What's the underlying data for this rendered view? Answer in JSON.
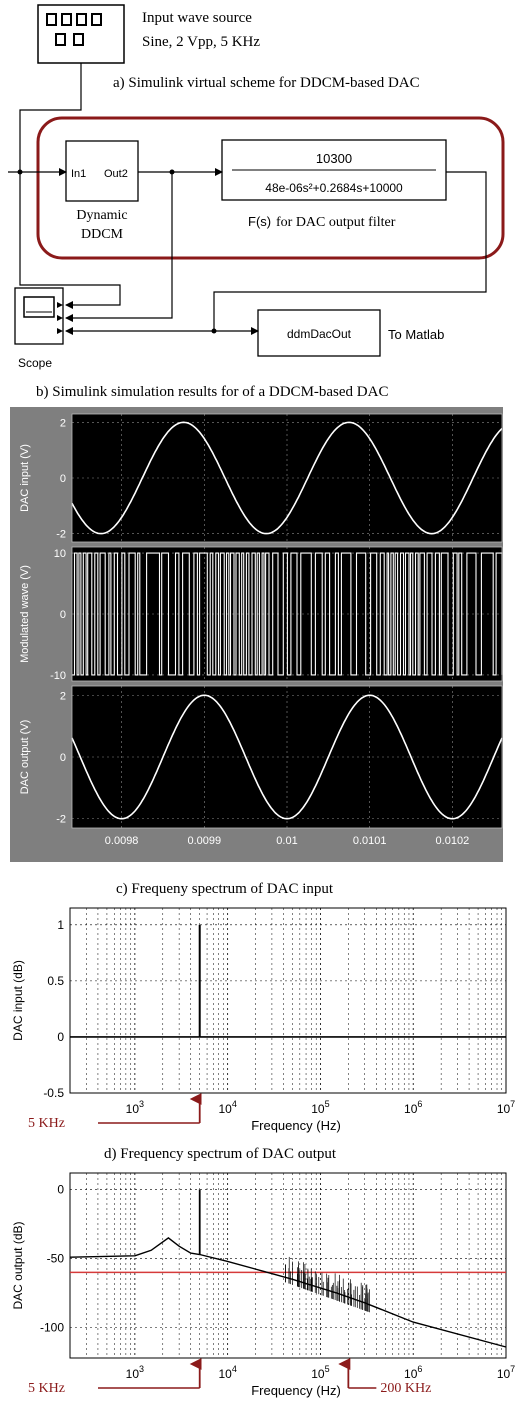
{
  "captions": {
    "a": "a)  Simulink virtual scheme for DDCM-based DAC",
    "b": "b)  Simulink simulation results for of  a  DDCM-based DAC",
    "c": "c)   Frequeny  spectrum of DAC input",
    "d": "d)  Frequency spectrum of DAC output"
  },
  "scheme": {
    "source_title": "Input wave source",
    "source_params": "Sine, 2 Vpp, 5 KHz",
    "ddcm_in": "In1",
    "ddcm_out": "Out2",
    "ddcm_label_1": "Dynamic",
    "ddcm_label_2": "DDCM",
    "tf_numerator": "10300",
    "tf_denominator": "48e-06s²+0.2684s+10000",
    "tf_fs": "F(s)",
    "tf_caption": "for DAC output filter",
    "scope_label": "Scope",
    "workspace_var": "ddmDacOut",
    "workspace_caption": "To Matlab"
  },
  "chart_data": [
    {
      "type": "line",
      "title": "",
      "ylabel": "DAC input (V)",
      "xlim": [
        0.00974,
        0.01026
      ],
      "ylim": [
        -2.3,
        2.3
      ],
      "yticks": [
        "2",
        "0",
        "-2"
      ],
      "yticks_values": [
        2,
        0,
        -2
      ],
      "signal": {
        "kind": "sine",
        "amplitude": 2,
        "frequency_hz": 5000,
        "phase_ref_max_at": 0.009875
      },
      "grid": true,
      "background": "#000000",
      "line_color": "#ffffff"
    },
    {
      "type": "line",
      "title": "",
      "ylabel": "Modulated wave (V)",
      "xlim": [
        0.00974,
        0.01026
      ],
      "ylim": [
        -11,
        11
      ],
      "yticks": [
        "10",
        "0",
        "-10"
      ],
      "yticks_values": [
        10,
        0,
        -10
      ],
      "signal": {
        "kind": "pulse-modulated",
        "levels": [
          10,
          -10
        ]
      },
      "grid": true,
      "background": "#000000",
      "line_color": "#ffffff"
    },
    {
      "type": "line",
      "title": "",
      "ylabel": "DAC output (V)",
      "xlabel": "",
      "xlim": [
        0.00974,
        0.01026
      ],
      "ylim": [
        -2.3,
        2.3
      ],
      "yticks": [
        "2",
        "0",
        "-2"
      ],
      "yticks_values": [
        2,
        0,
        -2
      ],
      "xticks": [
        "0.0098",
        "0.0099",
        "0.01",
        "0.0101",
        "0.0102"
      ],
      "xticks_values": [
        0.0098,
        0.0099,
        0.01,
        0.0101,
        0.0102
      ],
      "signal": {
        "kind": "sine",
        "amplitude": 2,
        "frequency_hz": 5000,
        "phase_ref_max_at": 0.0099
      },
      "grid": true,
      "background": "#000000",
      "line_color": "#ffffff"
    },
    {
      "type": "line",
      "title": "",
      "xlabel": "Frequency (Hz)",
      "ylabel": "DAC input (dB)",
      "x_scale": "log",
      "xlim": [
        200,
        10000000
      ],
      "ylim": [
        -0.5,
        1.15
      ],
      "yticks": [
        "1",
        "0.5",
        "0",
        "-0.5"
      ],
      "yticks_values": [
        1,
        0.5,
        0,
        -0.5
      ],
      "xticks_base": "10",
      "xticks_exp": [
        "3",
        "4",
        "5",
        "6",
        "7"
      ],
      "series": [
        {
          "values": [
            {
              "x": 5000,
              "y": 1
            }
          ],
          "baseline": 0
        }
      ],
      "annotations": [
        {
          "label": "5 KHz",
          "x": 5000
        }
      ],
      "grid": true
    },
    {
      "type": "line",
      "title": "",
      "xlabel": "Frequency (Hz)",
      "ylabel": "DAC output (dB)",
      "x_scale": "log",
      "xlim": [
        200,
        10000000
      ],
      "ylim": [
        -122,
        12
      ],
      "yticks": [
        "0",
        "-50",
        "-100"
      ],
      "yticks_values": [
        0,
        -50,
        -100
      ],
      "xticks_base": "10",
      "xticks_exp": [
        "3",
        "4",
        "5",
        "6",
        "7"
      ],
      "series": [
        {
          "values": [
            {
              "x": 200,
              "y": -49
            },
            {
              "x": 1000,
              "y": -48
            },
            {
              "x": 1500,
              "y": -44
            },
            {
              "x": 2300,
              "y": -35
            },
            {
              "x": 3000,
              "y": -41
            },
            {
              "x": 4000,
              "y": -46
            },
            {
              "x": 5000,
              "y": -47
            },
            {
              "x": 10000,
              "y": -52
            },
            {
              "x": 50000,
              "y": -65
            },
            {
              "x": 150000,
              "y": -75
            },
            {
              "x": 300000,
              "y": -82
            },
            {
              "x": 1000000,
              "y": -96
            },
            {
              "x": 10000000,
              "y": -114
            }
          ]
        }
      ],
      "peaks": [
        {
          "x": 5000,
          "y": 0
        }
      ],
      "reference_line": {
        "y": -60,
        "color": "#d63a3a"
      },
      "annotations": [
        {
          "label": "5 KHz",
          "x": 5000
        },
        {
          "label": "200 KHz",
          "x": 200000
        }
      ],
      "grid": true
    }
  ]
}
